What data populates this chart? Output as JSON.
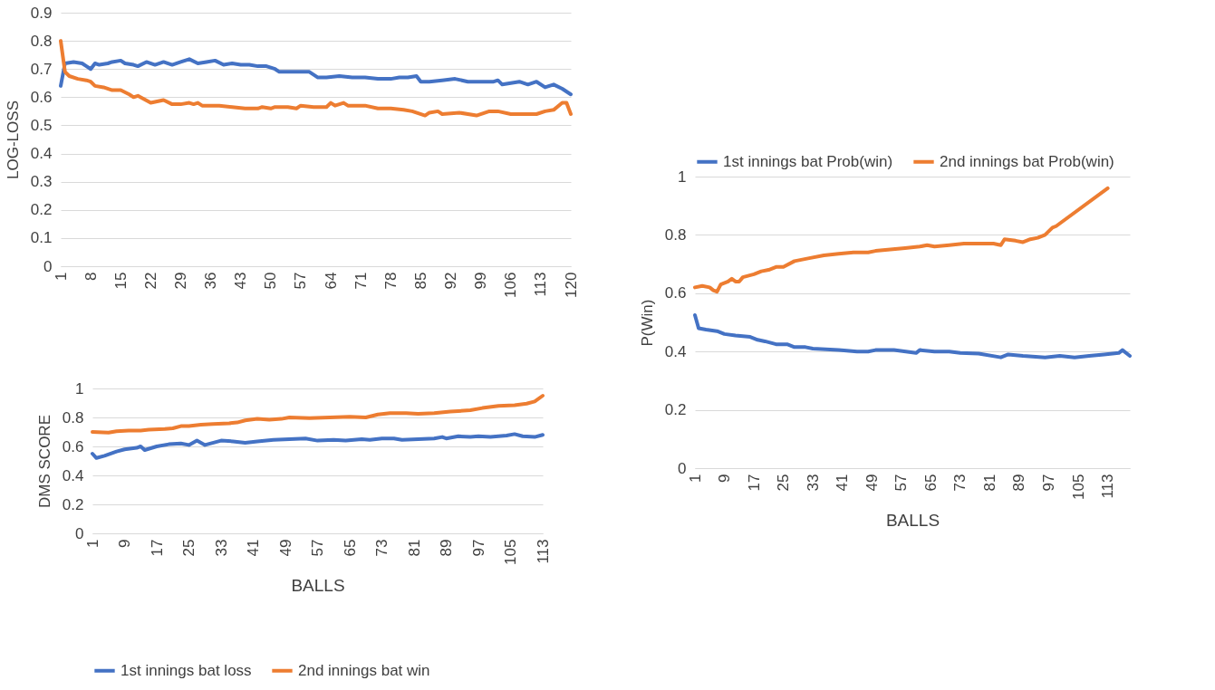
{
  "chart_data": [
    {
      "type": "line",
      "ylabel": "LOG-LOSS",
      "xlim": [
        1,
        120
      ],
      "xticks": [
        1,
        8,
        15,
        22,
        29,
        36,
        43,
        50,
        57,
        64,
        71,
        78,
        85,
        92,
        99,
        106,
        113,
        120
      ],
      "ylim": [
        0,
        0.9
      ],
      "yticks": [
        0,
        0.1,
        0.2,
        0.3,
        0.4,
        0.5,
        0.6,
        0.7,
        0.8,
        0.9
      ],
      "grid": "y",
      "series": [
        {
          "color": "#4472c4",
          "x": [
            1,
            2,
            4,
            6,
            7,
            8,
            9,
            10,
            12,
            13,
            15,
            16,
            18,
            19,
            21,
            23,
            25,
            27,
            29,
            30,
            31,
            33,
            35,
            37,
            39,
            41,
            43,
            45,
            47,
            49,
            51,
            52,
            55,
            58,
            59,
            61,
            63,
            66,
            69,
            72,
            75,
            78,
            80,
            82,
            84,
            85,
            87,
            90,
            93,
            96,
            99,
            102,
            103,
            104,
            106,
            108,
            110,
            112,
            114,
            116,
            118,
            120
          ],
          "values": [
            0.64,
            0.72,
            0.725,
            0.72,
            0.71,
            0.7,
            0.72,
            0.715,
            0.72,
            0.725,
            0.73,
            0.72,
            0.715,
            0.71,
            0.725,
            0.715,
            0.725,
            0.715,
            0.725,
            0.73,
            0.735,
            0.72,
            0.725,
            0.73,
            0.715,
            0.72,
            0.715,
            0.715,
            0.71,
            0.71,
            0.7,
            0.69,
            0.69,
            0.69,
            0.69,
            0.67,
            0.67,
            0.675,
            0.67,
            0.67,
            0.665,
            0.665,
            0.67,
            0.67,
            0.675,
            0.655,
            0.655,
            0.66,
            0.665,
            0.655,
            0.655,
            0.655,
            0.66,
            0.645,
            0.65,
            0.655,
            0.645,
            0.655,
            0.635,
            0.645,
            0.63,
            0.61
          ]
        },
        {
          "color": "#ed7d31",
          "x": [
            1,
            2,
            3,
            5,
            7,
            8,
            9,
            11,
            13,
            15,
            17,
            18,
            19,
            22,
            25,
            27,
            29,
            31,
            32,
            33,
            34,
            38,
            41,
            44,
            47,
            48,
            50,
            51,
            54,
            56,
            57,
            60,
            63,
            64,
            65,
            67,
            68,
            72,
            75,
            78,
            81,
            83,
            86,
            87,
            89,
            90,
            94,
            98,
            101,
            103,
            106,
            110,
            112,
            114,
            116,
            118,
            119,
            120
          ],
          "values": [
            0.8,
            0.69,
            0.675,
            0.665,
            0.66,
            0.655,
            0.64,
            0.635,
            0.625,
            0.625,
            0.61,
            0.6,
            0.605,
            0.58,
            0.59,
            0.575,
            0.575,
            0.58,
            0.575,
            0.58,
            0.57,
            0.57,
            0.565,
            0.56,
            0.56,
            0.565,
            0.56,
            0.565,
            0.565,
            0.56,
            0.57,
            0.565,
            0.565,
            0.58,
            0.57,
            0.58,
            0.57,
            0.57,
            0.56,
            0.56,
            0.555,
            0.55,
            0.535,
            0.545,
            0.55,
            0.54,
            0.545,
            0.535,
            0.55,
            0.55,
            0.54,
            0.54,
            0.54,
            0.55,
            0.555,
            0.58,
            0.58,
            0.54
          ]
        }
      ]
    },
    {
      "type": "line",
      "xlabel": "BALLS",
      "ylabel": "DMS SCORE",
      "xlim": [
        1,
        113
      ],
      "xticks": [
        1,
        9,
        17,
        25,
        33,
        41,
        49,
        57,
        65,
        73,
        81,
        89,
        97,
        105,
        113
      ],
      "ylim": [
        0,
        1
      ],
      "yticks": [
        0,
        0.2,
        0.4,
        0.6,
        0.8,
        1
      ],
      "grid": "y",
      "legend": "bottom",
      "series": [
        {
          "name": "1st innings bat loss",
          "color": "#4472c4",
          "x": [
            1,
            2,
            4,
            7,
            9,
            12,
            13,
            14,
            17,
            20,
            23,
            25,
            27,
            29,
            33,
            36,
            39,
            42,
            46,
            50,
            54,
            57,
            61,
            64,
            68,
            70,
            73,
            76,
            78,
            82,
            86,
            88,
            89,
            92,
            95,
            97,
            100,
            104,
            106,
            108,
            111,
            113
          ],
          "values": [
            0.55,
            0.52,
            0.535,
            0.565,
            0.58,
            0.59,
            0.6,
            0.575,
            0.6,
            0.615,
            0.62,
            0.61,
            0.64,
            0.61,
            0.64,
            0.635,
            0.625,
            0.635,
            0.645,
            0.65,
            0.655,
            0.64,
            0.645,
            0.64,
            0.65,
            0.645,
            0.655,
            0.655,
            0.645,
            0.65,
            0.655,
            0.665,
            0.655,
            0.67,
            0.665,
            0.67,
            0.665,
            0.675,
            0.685,
            0.67,
            0.665,
            0.68
          ]
        },
        {
          "name": "2nd innings bat win",
          "color": "#ed7d31",
          "x": [
            1,
            5,
            7,
            10,
            13,
            15,
            19,
            21,
            23,
            25,
            28,
            31,
            35,
            37,
            39,
            42,
            45,
            48,
            50,
            55,
            60,
            65,
            69,
            72,
            75,
            79,
            82,
            86,
            90,
            95,
            98,
            102,
            106,
            109,
            111,
            113
          ],
          "values": [
            0.7,
            0.695,
            0.705,
            0.71,
            0.71,
            0.715,
            0.72,
            0.725,
            0.74,
            0.74,
            0.75,
            0.755,
            0.76,
            0.765,
            0.78,
            0.79,
            0.785,
            0.79,
            0.8,
            0.795,
            0.8,
            0.805,
            0.8,
            0.82,
            0.83,
            0.83,
            0.825,
            0.83,
            0.84,
            0.85,
            0.865,
            0.88,
            0.885,
            0.895,
            0.91,
            0.95
          ]
        }
      ]
    },
    {
      "type": "line",
      "xlabel": "BALLS",
      "ylabel": "P(Win)",
      "xlim": [
        1,
        119
      ],
      "xticks": [
        1,
        9,
        17,
        25,
        33,
        41,
        49,
        57,
        65,
        73,
        81,
        89,
        97,
        105,
        113
      ],
      "ylim": [
        0,
        1
      ],
      "yticks": [
        0,
        0.2,
        0.4,
        0.6,
        0.8,
        1
      ],
      "grid": "y",
      "legend": "top",
      "series": [
        {
          "name": "1st innings bat Prob(win)",
          "color": "#4472c4",
          "x": [
            1,
            2,
            4,
            7,
            9,
            12,
            16,
            18,
            20,
            23,
            26,
            28,
            31,
            33,
            40,
            45,
            48,
            50,
            55,
            61,
            62,
            66,
            70,
            73,
            78,
            84,
            86,
            90,
            96,
            100,
            104,
            108,
            112,
            116,
            117,
            119
          ],
          "values": [
            0.525,
            0.48,
            0.475,
            0.47,
            0.46,
            0.455,
            0.45,
            0.44,
            0.435,
            0.425,
            0.425,
            0.415,
            0.415,
            0.41,
            0.405,
            0.4,
            0.4,
            0.405,
            0.405,
            0.395,
            0.405,
            0.4,
            0.4,
            0.395,
            0.393,
            0.38,
            0.39,
            0.385,
            0.38,
            0.385,
            0.38,
            0.385,
            0.39,
            0.395,
            0.405,
            0.385
          ]
        },
        {
          "name": "2nd innings bat Prob(win)",
          "color": "#ed7d31",
          "x": [
            1,
            3,
            5,
            6,
            7,
            8,
            10,
            11,
            12,
            13,
            14,
            17,
            19,
            21,
            23,
            25,
            28,
            32,
            36,
            40,
            44,
            48,
            50,
            54,
            58,
            62,
            64,
            66,
            70,
            74,
            78,
            82,
            84,
            85,
            88,
            90,
            92,
            94,
            96,
            98,
            99,
            113
          ],
          "values": [
            0.62,
            0.625,
            0.62,
            0.61,
            0.605,
            0.63,
            0.64,
            0.65,
            0.64,
            0.64,
            0.655,
            0.665,
            0.675,
            0.68,
            0.69,
            0.69,
            0.71,
            0.72,
            0.73,
            0.735,
            0.74,
            0.74,
            0.745,
            0.75,
            0.755,
            0.76,
            0.765,
            0.76,
            0.765,
            0.77,
            0.77,
            0.77,
            0.765,
            0.785,
            0.78,
            0.775,
            0.785,
            0.79,
            0.8,
            0.825,
            0.83,
            0.96
          ]
        }
      ]
    }
  ]
}
